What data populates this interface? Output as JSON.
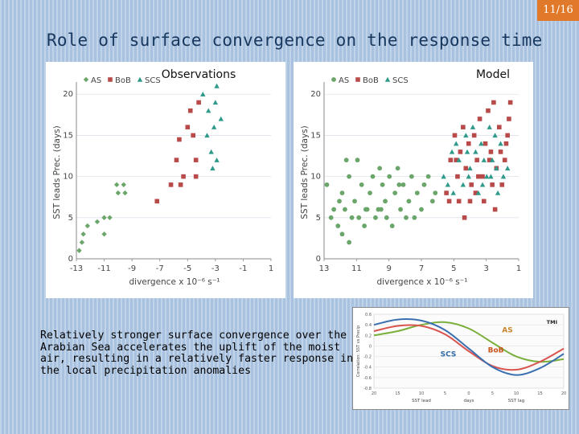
{
  "slide": {
    "number": "11/16",
    "title": "Role of surface convergence on the response time",
    "caption": "Relatively stronger surface convergence over the Arabian Sea accelerates the uplift of the moist air, resulting in a relatively faster response in the local precipitation anomalies",
    "accent_color": "#e07a2a"
  },
  "chart_data": [
    {
      "type": "scatter",
      "title": "Observations",
      "xlabel": "divergence x 10⁻⁶ s⁻¹",
      "ylabel": "SST leads Prec. (days)",
      "xlim": [
        -13,
        1
      ],
      "ylim": [
        0,
        21
      ],
      "xticks": [
        "-13",
        "-11",
        "-9",
        "-7",
        "-5",
        "-3",
        "-1",
        "1"
      ],
      "yticks": [
        "0",
        "5",
        "10",
        "15",
        "20"
      ],
      "legend": [
        "AS",
        "BoB",
        "SCS"
      ],
      "legend_placement": "top-left",
      "series": [
        {
          "name": "AS",
          "marker": "diamond",
          "color": "#6aa56a",
          "points": [
            [
              -12.8,
              1
            ],
            [
              -12.6,
              2
            ],
            [
              -12.5,
              3
            ],
            [
              -12.2,
              4
            ],
            [
              -11.5,
              4.5
            ],
            [
              -11,
              5
            ],
            [
              -10.6,
              5
            ],
            [
              -11,
              3
            ],
            [
              -10,
              8
            ],
            [
              -9.6,
              9
            ],
            [
              -9.5,
              8
            ],
            [
              -10.1,
              9
            ]
          ]
        },
        {
          "name": "BoB",
          "marker": "square",
          "color": "#b94a4a",
          "points": [
            [
              -7.2,
              7
            ],
            [
              -6.2,
              9
            ],
            [
              -5.8,
              12
            ],
            [
              -5.6,
              14.5
            ],
            [
              -5.5,
              9
            ],
            [
              -5.3,
              10
            ],
            [
              -5,
              16
            ],
            [
              -4.8,
              18
            ],
            [
              -4.6,
              15
            ],
            [
              -4.4,
              12
            ],
            [
              -4.2,
              19
            ],
            [
              -4.4,
              10
            ]
          ]
        },
        {
          "name": "SCS",
          "marker": "triangle",
          "color": "#2f9a8a",
          "points": [
            [
              -3.9,
              20
            ],
            [
              -3.5,
              18
            ],
            [
              -3.6,
              15
            ],
            [
              -3.3,
              13
            ],
            [
              -3.1,
              16
            ],
            [
              -3,
              19
            ],
            [
              -2.9,
              21
            ],
            [
              -2.6,
              17
            ],
            [
              -3.2,
              11
            ],
            [
              -2.9,
              12
            ]
          ]
        }
      ]
    },
    {
      "type": "scatter",
      "title": "Model",
      "xlabel": "divergence x 10⁻⁶ s⁻¹",
      "ylabel": "SST leads Prec. (days)",
      "xlim": [
        -13,
        1
      ],
      "ylim": [
        0,
        21
      ],
      "xticks": [
        "13",
        "11",
        "9",
        "7",
        "5",
        "3",
        "1"
      ],
      "yticks": [
        "0",
        "5",
        "10",
        "15",
        "20"
      ],
      "legend": [
        "AS",
        "BoB",
        "SCS"
      ],
      "legend_placement": "top-left",
      "series": [
        {
          "name": "AS",
          "marker": "circle",
          "color": "#6aa56a",
          "points": [
            [
              -12.8,
              9
            ],
            [
              -12.3,
              6
            ],
            [
              -12.0,
              4
            ],
            [
              -11.7,
              8
            ],
            [
              -11.4,
              12
            ],
            [
              -11.2,
              10
            ],
            [
              -11.0,
              5
            ],
            [
              -10.8,
              7
            ],
            [
              -10.6,
              12
            ],
            [
              -10.5,
              5
            ],
            [
              -10.3,
              9
            ],
            [
              -10.1,
              4
            ],
            [
              -9.9,
              6
            ],
            [
              -9.7,
              8
            ],
            [
              -9.5,
              10
            ],
            [
              -9.3,
              5
            ],
            [
              -9.1,
              6
            ],
            [
              -9.0,
              11
            ],
            [
              -8.8,
              9
            ],
            [
              -8.6,
              7
            ],
            [
              -8.5,
              5
            ],
            [
              -8.3,
              10
            ],
            [
              -8.1,
              4
            ],
            [
              -7.9,
              8
            ],
            [
              -7.7,
              11
            ],
            [
              -7.5,
              6
            ],
            [
              -7.3,
              9
            ],
            [
              -7.1,
              5
            ],
            [
              -6.9,
              7
            ],
            [
              -6.7,
              10
            ],
            [
              -6.5,
              5
            ],
            [
              -6.3,
              8
            ],
            [
              -6.0,
              6
            ],
            [
              -5.8,
              9
            ],
            [
              -5.5,
              10
            ],
            [
              -5.2,
              7
            ],
            [
              -5.0,
              8
            ],
            [
              -11.9,
              7
            ],
            [
              -11.5,
              6
            ],
            [
              -10.0,
              6
            ],
            [
              -8.9,
              6
            ],
            [
              -7.6,
              9
            ],
            [
              -12.5,
              5
            ],
            [
              -11.2,
              2
            ],
            [
              -11.7,
              3
            ]
          ]
        },
        {
          "name": "BoB",
          "marker": "square",
          "color": "#b94a4a",
          "points": [
            [
              -4.2,
              8
            ],
            [
              -3.9,
              12
            ],
            [
              -3.6,
              15
            ],
            [
              -3.4,
              10
            ],
            [
              -3.2,
              13
            ],
            [
              -3.0,
              16
            ],
            [
              -2.8,
              11
            ],
            [
              -2.6,
              14
            ],
            [
              -2.4,
              9
            ],
            [
              -2.2,
              15
            ],
            [
              -2.0,
              12
            ],
            [
              -1.8,
              17
            ],
            [
              -1.6,
              10
            ],
            [
              -1.4,
              14
            ],
            [
              -1.2,
              18
            ],
            [
              -1.0,
              13
            ],
            [
              -0.8,
              19
            ],
            [
              -0.6,
              11
            ],
            [
              -0.4,
              16
            ],
            [
              -0.2,
              9
            ],
            [
              0.0,
              12
            ],
            [
              0.2,
              15
            ],
            [
              0.4,
              19
            ],
            [
              -3.3,
              7
            ],
            [
              -2.9,
              5
            ],
            [
              -2.1,
              8
            ],
            [
              -1.5,
              7
            ],
            [
              -0.7,
              6
            ],
            [
              -0.3,
              13
            ],
            [
              0.1,
              14
            ],
            [
              -2.5,
              7
            ],
            [
              -1.9,
              10
            ],
            [
              -4.0,
              7
            ],
            [
              -1.1,
              12
            ],
            [
              -3.5,
              12
            ],
            [
              -0.9,
              9
            ],
            [
              0.3,
              17
            ]
          ]
        },
        {
          "name": "SCS",
          "marker": "triangle",
          "color": "#2f9a8a",
          "points": [
            [
              -4.4,
              10
            ],
            [
              -4.1,
              9
            ],
            [
              -3.8,
              13
            ],
            [
              -3.5,
              14
            ],
            [
              -3.3,
              12
            ],
            [
              -3.0,
              9
            ],
            [
              -2.7,
              13
            ],
            [
              -2.5,
              11
            ],
            [
              -2.3,
              16
            ],
            [
              -2.1,
              13
            ],
            [
              -1.9,
              8
            ],
            [
              -1.7,
              14
            ],
            [
              -1.5,
              12
            ],
            [
              -1.3,
              10
            ],
            [
              -1.1,
              16
            ],
            [
              -0.9,
              12
            ],
            [
              -0.7,
              15
            ],
            [
              -0.5,
              8
            ],
            [
              -0.3,
              14
            ],
            [
              -0.1,
              10
            ],
            [
              0.2,
              11
            ],
            [
              -3.7,
              8
            ],
            [
              -2.6,
              10
            ],
            [
              -1.6,
              9
            ],
            [
              -0.6,
              11
            ],
            [
              -2.8,
              15
            ],
            [
              -1.0,
              10
            ]
          ]
        }
      ]
    },
    {
      "type": "line",
      "tag": "TMI",
      "ylabel": "Correlation: SST vs Precip",
      "x_axis_labels": [
        "SST lead",
        "days",
        "SST lag"
      ],
      "xticks": [
        "20",
        "15",
        "10",
        "5",
        "0",
        "5",
        "10",
        "15",
        "20"
      ],
      "yticks": [
        "0.6",
        "0.4",
        "0.2",
        "0",
        "-0.2",
        "-0.4",
        "-0.6",
        "-0.8"
      ],
      "xlim": [
        -20,
        20
      ],
      "ylim": [
        -0.8,
        0.6
      ],
      "series": [
        {
          "name": "AS",
          "color": "#7aaf3a",
          "label_color": "#c8842a",
          "x": [
            -20,
            -15,
            -10,
            -5,
            0,
            5,
            10,
            15,
            20
          ],
          "values": [
            0.2,
            0.28,
            0.4,
            0.45,
            0.33,
            0.06,
            -0.2,
            -0.3,
            -0.25
          ]
        },
        {
          "name": "BoB",
          "color": "#d9534f",
          "label_color": "#c8551a",
          "x": [
            -20,
            -15,
            -10,
            -5,
            0,
            5,
            10,
            15,
            20
          ],
          "values": [
            0.28,
            0.38,
            0.38,
            0.22,
            -0.1,
            -0.38,
            -0.45,
            -0.3,
            -0.05
          ]
        },
        {
          "name": "SCS",
          "color": "#3a6fb0",
          "label_color": "#2e6aa8",
          "x": [
            -20,
            -15,
            -10,
            -5,
            0,
            5,
            10,
            15,
            20
          ],
          "values": [
            0.4,
            0.5,
            0.48,
            0.3,
            -0.05,
            -0.4,
            -0.55,
            -0.42,
            -0.15
          ]
        }
      ]
    }
  ]
}
